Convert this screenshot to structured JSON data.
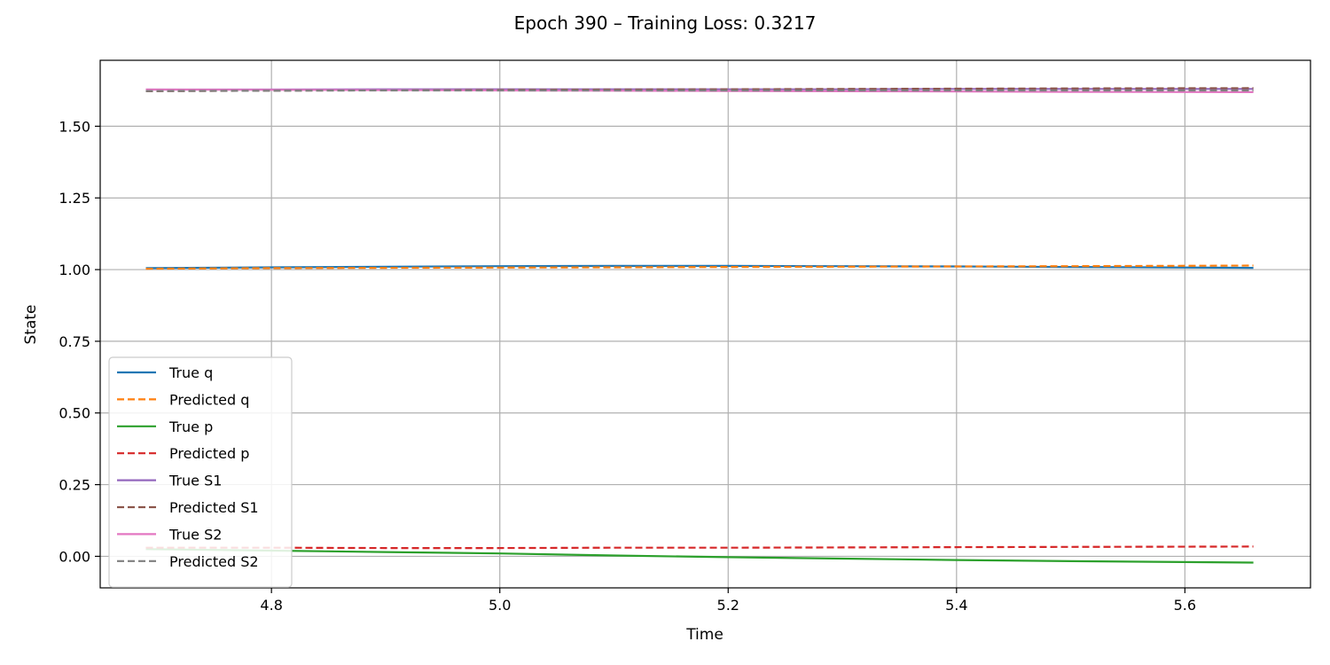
{
  "chart_data": {
    "type": "line",
    "title": "Epoch 390 – Training Loss: 0.3217",
    "xlabel": "Time",
    "ylabel": "State",
    "xlim": [
      4.65,
      5.71
    ],
    "ylim": [
      -0.11,
      1.73
    ],
    "xticks": [
      {
        "value": 4.8,
        "label": "4.8"
      },
      {
        "value": 5.0,
        "label": "5.0"
      },
      {
        "value": 5.2,
        "label": "5.2"
      },
      {
        "value": 5.4,
        "label": "5.4"
      },
      {
        "value": 5.6,
        "label": "5.6"
      }
    ],
    "yticks": [
      {
        "value": 0.0,
        "label": "0.00"
      },
      {
        "value": 0.25,
        "label": "0.25"
      },
      {
        "value": 0.5,
        "label": "0.50"
      },
      {
        "value": 0.75,
        "label": "0.75"
      },
      {
        "value": 1.0,
        "label": "1.00"
      },
      {
        "value": 1.25,
        "label": "1.25"
      },
      {
        "value": 1.5,
        "label": "1.50"
      }
    ],
    "grid": true,
    "legend_position": "lower-left",
    "x": [
      4.69,
      4.8,
      4.9,
      5.0,
      5.1,
      5.2,
      5.3,
      5.4,
      5.5,
      5.66
    ],
    "series": [
      {
        "name": "True q",
        "color": "#1f77b4",
        "dash": false,
        "values": [
          1.005,
          1.008,
          1.01,
          1.012,
          1.013,
          1.013,
          1.012,
          1.011,
          1.009,
          1.006
        ]
      },
      {
        "name": "Predicted q",
        "color": "#ff7f0e",
        "dash": true,
        "values": [
          1.003,
          1.005,
          1.006,
          1.007,
          1.008,
          1.009,
          1.01,
          1.011,
          1.012,
          1.014
        ]
      },
      {
        "name": "True p",
        "color": "#2ca02c",
        "dash": false,
        "values": [
          0.025,
          0.02,
          0.015,
          0.01,
          0.003,
          -0.003,
          -0.008,
          -0.013,
          -0.017,
          -0.022
        ]
      },
      {
        "name": "Predicted p",
        "color": "#d62728",
        "dash": true,
        "values": [
          0.03,
          0.03,
          0.029,
          0.029,
          0.03,
          0.03,
          0.031,
          0.032,
          0.033,
          0.034
        ]
      },
      {
        "name": "True S1",
        "color": "#9467bd",
        "dash": false,
        "values": [
          1.628,
          1.628,
          1.629,
          1.629,
          1.629,
          1.629,
          1.629,
          1.63,
          1.63,
          1.63
        ]
      },
      {
        "name": "Predicted S1",
        "color": "#8c564b",
        "dash": true,
        "values": [
          1.622,
          1.624,
          1.626,
          1.627,
          1.628,
          1.629,
          1.63,
          1.631,
          1.632,
          1.633
        ]
      },
      {
        "name": "True S2",
        "color": "#e377c2",
        "dash": false,
        "values": [
          1.628,
          1.627,
          1.626,
          1.625,
          1.624,
          1.623,
          1.622,
          1.621,
          1.62,
          1.619
        ]
      },
      {
        "name": "Predicted S2",
        "color": "#7f7f7f",
        "dash": true,
        "values": [
          1.623,
          1.624,
          1.625,
          1.625,
          1.625,
          1.625,
          1.625,
          1.625,
          1.625,
          1.625
        ]
      }
    ]
  }
}
